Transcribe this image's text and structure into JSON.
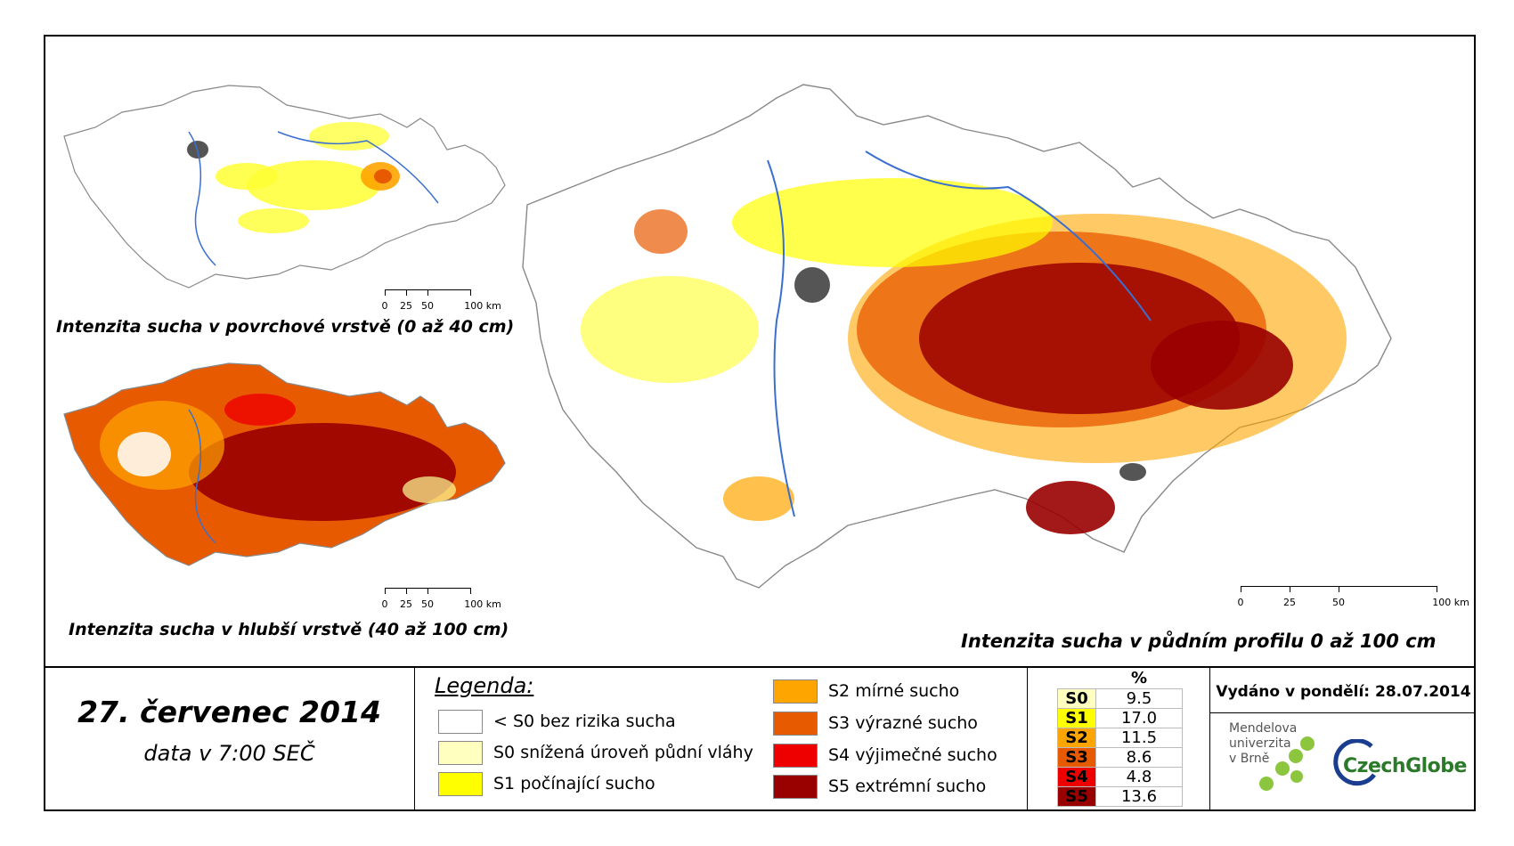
{
  "maps": {
    "surface_title": "Intenzita sucha v povrchové vrstvě (0 až 40 cm)",
    "deep_title": "Intenzita sucha v hlubší vrstvě (40 až 100 cm)",
    "profile_title": "Intenzita sucha v půdním profilu 0 až 100 cm"
  },
  "scalebar": {
    "labels": [
      "0",
      "25",
      "50",
      "100 km"
    ]
  },
  "date": {
    "main": "27. červenec 2014",
    "sub": "data v 7:00 SEČ"
  },
  "legend": {
    "title": "Legenda:",
    "items": [
      {
        "label": "< S0 bez rizika sucha",
        "color": "#ffffff"
      },
      {
        "label": "S0 snížená úroveň půdní vláhy",
        "color": "#ffffc0"
      },
      {
        "label": "S1 počínající sucho",
        "color": "#ffff00"
      },
      {
        "label": "S2 mírné sucho",
        "color": "#ffa500"
      },
      {
        "label": "S3 výrazné sucho",
        "color": "#e85a00"
      },
      {
        "label": "S4 výjimečné sucho",
        "color": "#ee0000"
      },
      {
        "label": "S5 extrémní sucho",
        "color": "#990000"
      }
    ]
  },
  "percent_table": {
    "header": "%",
    "rows": [
      {
        "code": "S0",
        "value": "9.5",
        "color": "#ffffc0"
      },
      {
        "code": "S1",
        "value": "17.0",
        "color": "#ffff00"
      },
      {
        "code": "S2",
        "value": "11.5",
        "color": "#ffa500"
      },
      {
        "code": "S3",
        "value": "8.6",
        "color": "#e85a00"
      },
      {
        "code": "S4",
        "value": "4.8",
        "color": "#ee0000"
      },
      {
        "code": "S5",
        "value": "13.6",
        "color": "#990000"
      }
    ]
  },
  "issued": "Vydáno v pondělí: 28.07.2014",
  "logos": {
    "mendel": "Mendelova univerzita v Brně",
    "mendel_lines": [
      "Mendelova",
      "univerzita",
      "v Brně"
    ],
    "czechglobe": "CzechGlobe"
  },
  "colors": {
    "s1": "#ffff00",
    "s2": "#ffa500",
    "s3": "#e85a00",
    "s4": "#ee0000",
    "s5": "#990000",
    "river": "#3a6fd0",
    "city": "#555555",
    "border": "#888888"
  }
}
